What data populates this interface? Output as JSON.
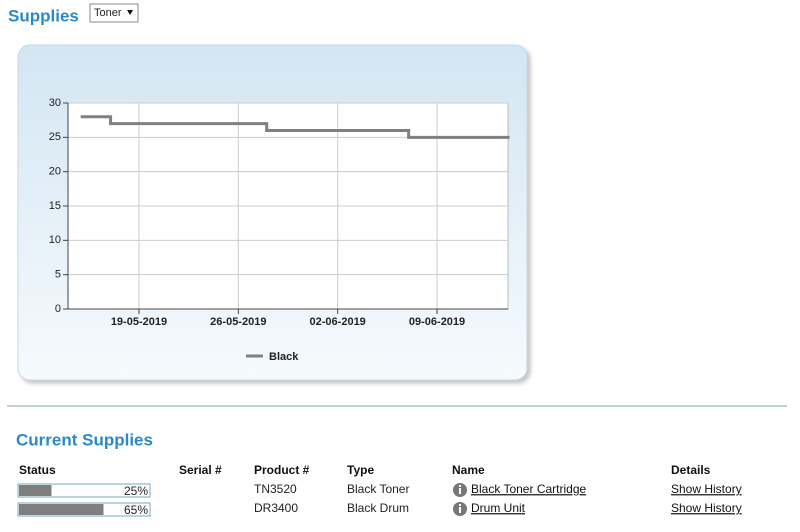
{
  "header": {
    "title": "Supplies",
    "select": "Toner"
  },
  "chart_data": {
    "type": "line",
    "step": true,
    "x": [
      "15-05-2019",
      "17-05-2019",
      "28-05-2019",
      "07-06-2019",
      "14-06-2019"
    ],
    "series": [
      {
        "name": "Black",
        "color": "#808080",
        "values": [
          28,
          27,
          26,
          25,
          25
        ]
      }
    ],
    "xlim": [
      "14-05-2019",
      "14-06-2019"
    ],
    "xticks": [
      "19-05-2019",
      "26-05-2019",
      "02-06-2019",
      "09-06-2019"
    ],
    "ylim": [
      0,
      30
    ],
    "yticks": [
      0,
      5,
      10,
      15,
      20,
      25,
      30
    ],
    "grid": true
  },
  "current": {
    "title": "Current Supplies",
    "columns": [
      "Status",
      "Serial #",
      "Product #",
      "Type",
      "Name",
      "Details"
    ],
    "rows": [
      {
        "status": 25,
        "status_label": "25%",
        "product": "TN3520",
        "type": "Black Toner",
        "name": "Black Toner Cartridge",
        "details": "Show History"
      },
      {
        "status": 65,
        "status_label": "65%",
        "product": "DR3400",
        "type": "Black Drum",
        "name": "Drum Unit",
        "details": "Show History"
      }
    ]
  }
}
